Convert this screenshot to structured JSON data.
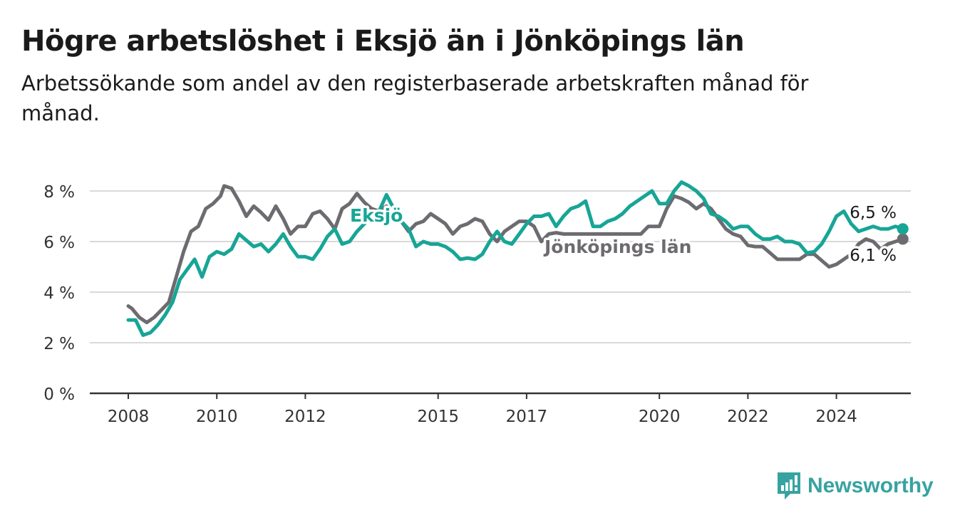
{
  "header": {
    "title": "Högre arbetslöshet i Eksjö än i Jönköpings län",
    "subtitle": "Arbetssökande som andel av den registerbaserade arbetskraften månad för månad."
  },
  "brand": {
    "name": "Newsworthy",
    "color": "#37a3a1",
    "icon": "bar-chart-exclamation-icon"
  },
  "chart_data": {
    "type": "line",
    "title": "Högre arbetslöshet i Eksjö än i Jönköpings län",
    "subtitle": "Arbetssökande som andel av den registerbaserade arbetskraften månad för månad.",
    "xlabel": "",
    "ylabel": "",
    "xlim": [
      "2008-01",
      "2025-12"
    ],
    "ylim": [
      0,
      8
    ],
    "y_ticks": [
      0,
      2,
      4,
      6,
      8
    ],
    "y_tick_labels": [
      "0 %",
      "2 %",
      "4 %",
      "6 %",
      "8 %"
    ],
    "x_ticks": [
      "2008-01",
      "2010-01",
      "2012-01",
      "2015-01",
      "2017-01",
      "2020-01",
      "2022-01",
      "2024-01"
    ],
    "x_tick_labels": [
      "2008",
      "2010",
      "2012",
      "2015",
      "2017",
      "2020",
      "2022",
      "2024"
    ],
    "grid": true,
    "legend": "inline labels on lines",
    "series": [
      {
        "name": "Jönköpings län",
        "color": "#6e6b70",
        "end_label": "6,1 %",
        "points": [
          [
            "2008-01",
            3.45
          ],
          [
            "2008-02",
            3.35
          ],
          [
            "2008-04",
            3.0
          ],
          [
            "2008-06",
            2.8
          ],
          [
            "2008-08",
            3.0
          ],
          [
            "2008-10",
            3.3
          ],
          [
            "2008-12",
            3.6
          ],
          [
            "2009-02",
            4.6
          ],
          [
            "2009-04",
            5.6
          ],
          [
            "2009-06",
            6.4
          ],
          [
            "2009-08",
            6.6
          ],
          [
            "2009-10",
            7.3
          ],
          [
            "2009-12",
            7.5
          ],
          [
            "2010-02",
            7.8
          ],
          [
            "2010-03",
            8.2
          ],
          [
            "2010-05",
            8.1
          ],
          [
            "2010-07",
            7.6
          ],
          [
            "2010-09",
            7.0
          ],
          [
            "2010-11",
            7.4
          ],
          [
            "2011-01",
            7.15
          ],
          [
            "2011-03",
            6.85
          ],
          [
            "2011-05",
            7.4
          ],
          [
            "2011-07",
            6.9
          ],
          [
            "2011-09",
            6.3
          ],
          [
            "2011-11",
            6.6
          ],
          [
            "2012-01",
            6.6
          ],
          [
            "2012-03",
            7.1
          ],
          [
            "2012-05",
            7.2
          ],
          [
            "2012-07",
            6.9
          ],
          [
            "2012-09",
            6.5
          ],
          [
            "2012-11",
            7.3
          ],
          [
            "2013-01",
            7.5
          ],
          [
            "2013-03",
            7.9
          ],
          [
            "2013-05",
            7.55
          ],
          [
            "2013-07",
            7.3
          ],
          [
            "2013-09",
            7.2
          ],
          [
            "2013-11",
            7.4
          ],
          [
            "2014-01",
            7.1
          ],
          [
            "2014-03",
            6.8
          ],
          [
            "2014-05",
            6.4
          ],
          [
            "2014-07",
            6.7
          ],
          [
            "2014-09",
            6.8
          ],
          [
            "2014-11",
            7.1
          ],
          [
            "2015-01",
            6.9
          ],
          [
            "2015-03",
            6.7
          ],
          [
            "2015-05",
            6.3
          ],
          [
            "2015-07",
            6.6
          ],
          [
            "2015-09",
            6.7
          ],
          [
            "2015-11",
            6.9
          ],
          [
            "2016-01",
            6.8
          ],
          [
            "2016-03",
            6.3
          ],
          [
            "2016-05",
            6.0
          ],
          [
            "2016-07",
            6.4
          ],
          [
            "2016-09",
            6.6
          ],
          [
            "2016-11",
            6.8
          ],
          [
            "2017-01",
            6.8
          ],
          [
            "2017-03",
            6.6
          ],
          [
            "2017-05",
            6.0
          ],
          [
            "2017-07",
            6.3
          ],
          [
            "2017-09",
            6.35
          ],
          [
            "2017-11",
            6.3
          ],
          [
            "2018-01",
            6.3
          ],
          [
            "2019-08",
            6.3
          ],
          [
            "2019-10",
            6.6
          ],
          [
            "2020-01",
            6.6
          ],
          [
            "2020-03",
            7.3
          ],
          [
            "2020-05",
            7.8
          ],
          [
            "2020-07",
            7.7
          ],
          [
            "2020-09",
            7.55
          ],
          [
            "2020-11",
            7.3
          ],
          [
            "2021-01",
            7.5
          ],
          [
            "2021-03",
            7.3
          ],
          [
            "2021-05",
            6.9
          ],
          [
            "2021-07",
            6.5
          ],
          [
            "2021-09",
            6.3
          ],
          [
            "2021-11",
            6.2
          ],
          [
            "2022-01",
            5.85
          ],
          [
            "2022-03",
            5.8
          ],
          [
            "2022-05",
            5.8
          ],
          [
            "2022-07",
            5.55
          ],
          [
            "2022-09",
            5.3
          ],
          [
            "2022-11",
            5.3
          ],
          [
            "2023-01",
            5.3
          ],
          [
            "2023-03",
            5.3
          ],
          [
            "2023-05",
            5.5
          ],
          [
            "2023-07",
            5.5
          ],
          [
            "2023-09",
            5.25
          ],
          [
            "2023-11",
            5.0
          ],
          [
            "2024-01",
            5.1
          ],
          [
            "2024-03",
            5.3
          ],
          [
            "2024-05",
            5.5
          ],
          [
            "2024-07",
            5.9
          ],
          [
            "2024-09",
            6.1
          ],
          [
            "2024-11",
            6.0
          ],
          [
            "2025-01",
            5.7
          ],
          [
            "2025-03",
            5.9
          ],
          [
            "2025-05",
            6.0
          ],
          [
            "2025-07",
            6.1
          ]
        ]
      },
      {
        "name": "Eksjö",
        "color": "#17a596",
        "end_label": "6,5 %",
        "points": [
          [
            "2008-01",
            2.9
          ],
          [
            "2008-03",
            2.9
          ],
          [
            "2008-05",
            2.3
          ],
          [
            "2008-07",
            2.4
          ],
          [
            "2008-09",
            2.7
          ],
          [
            "2008-11",
            3.1
          ],
          [
            "2009-01",
            3.6
          ],
          [
            "2009-03",
            4.5
          ],
          [
            "2009-05",
            4.9
          ],
          [
            "2009-07",
            5.3
          ],
          [
            "2009-09",
            4.6
          ],
          [
            "2009-11",
            5.4
          ],
          [
            "2010-01",
            5.6
          ],
          [
            "2010-03",
            5.5
          ],
          [
            "2010-05",
            5.7
          ],
          [
            "2010-07",
            6.3
          ],
          [
            "2010-09",
            6.05
          ],
          [
            "2010-11",
            5.8
          ],
          [
            "2011-01",
            5.9
          ],
          [
            "2011-03",
            5.6
          ],
          [
            "2011-05",
            5.9
          ],
          [
            "2011-07",
            6.3
          ],
          [
            "2011-09",
            5.8
          ],
          [
            "2011-11",
            5.4
          ],
          [
            "2012-01",
            5.4
          ],
          [
            "2012-03",
            5.3
          ],
          [
            "2012-05",
            5.7
          ],
          [
            "2012-07",
            6.2
          ],
          [
            "2012-09",
            6.5
          ],
          [
            "2012-11",
            5.9
          ],
          [
            "2013-01",
            6.0
          ],
          [
            "2013-03",
            6.4
          ],
          [
            "2013-05",
            6.7
          ],
          [
            "2013-07",
            6.9
          ],
          [
            "2013-09",
            7.2
          ],
          [
            "2013-11",
            7.85
          ],
          [
            "2014-01",
            7.3
          ],
          [
            "2014-03",
            6.8
          ],
          [
            "2014-05",
            6.5
          ],
          [
            "2014-07",
            5.8
          ],
          [
            "2014-09",
            6.0
          ],
          [
            "2014-11",
            5.9
          ],
          [
            "2015-01",
            5.9
          ],
          [
            "2015-03",
            5.8
          ],
          [
            "2015-05",
            5.6
          ],
          [
            "2015-07",
            5.3
          ],
          [
            "2015-09",
            5.35
          ],
          [
            "2015-11",
            5.3
          ],
          [
            "2016-01",
            5.5
          ],
          [
            "2016-03",
            6.0
          ],
          [
            "2016-05",
            6.4
          ],
          [
            "2016-07",
            6.0
          ],
          [
            "2016-09",
            5.9
          ],
          [
            "2016-11",
            6.3
          ],
          [
            "2017-01",
            6.7
          ],
          [
            "2017-03",
            7.0
          ],
          [
            "2017-05",
            7.0
          ],
          [
            "2017-07",
            7.1
          ],
          [
            "2017-09",
            6.6
          ],
          [
            "2017-11",
            7.0
          ],
          [
            "2018-01",
            7.3
          ],
          [
            "2018-03",
            7.4
          ],
          [
            "2018-05",
            7.6
          ],
          [
            "2018-07",
            6.6
          ],
          [
            "2018-09",
            6.6
          ],
          [
            "2018-11",
            6.8
          ],
          [
            "2019-01",
            6.9
          ],
          [
            "2019-03",
            7.1
          ],
          [
            "2019-05",
            7.4
          ],
          [
            "2019-07",
            7.6
          ],
          [
            "2019-09",
            7.8
          ],
          [
            "2019-11",
            8.0
          ],
          [
            "2020-01",
            7.5
          ],
          [
            "2020-03",
            7.5
          ],
          [
            "2020-05",
            8.0
          ],
          [
            "2020-07",
            8.35
          ],
          [
            "2020-09",
            8.2
          ],
          [
            "2020-11",
            8.0
          ],
          [
            "2021-01",
            7.7
          ],
          [
            "2021-03",
            7.1
          ],
          [
            "2021-05",
            7.0
          ],
          [
            "2021-07",
            6.8
          ],
          [
            "2021-09",
            6.5
          ],
          [
            "2021-11",
            6.6
          ],
          [
            "2022-01",
            6.6
          ],
          [
            "2022-03",
            6.3
          ],
          [
            "2022-05",
            6.1
          ],
          [
            "2022-07",
            6.1
          ],
          [
            "2022-09",
            6.2
          ],
          [
            "2022-11",
            6.0
          ],
          [
            "2023-01",
            6.0
          ],
          [
            "2023-03",
            5.9
          ],
          [
            "2023-05",
            5.55
          ],
          [
            "2023-07",
            5.6
          ],
          [
            "2023-09",
            5.9
          ],
          [
            "2023-11",
            6.4
          ],
          [
            "2024-01",
            7.0
          ],
          [
            "2024-03",
            7.2
          ],
          [
            "2024-05",
            6.7
          ],
          [
            "2024-07",
            6.4
          ],
          [
            "2024-09",
            6.5
          ],
          [
            "2024-11",
            6.6
          ],
          [
            "2025-01",
            6.5
          ],
          [
            "2025-03",
            6.5
          ],
          [
            "2025-05",
            6.6
          ],
          [
            "2025-07",
            6.5
          ]
        ]
      }
    ]
  }
}
